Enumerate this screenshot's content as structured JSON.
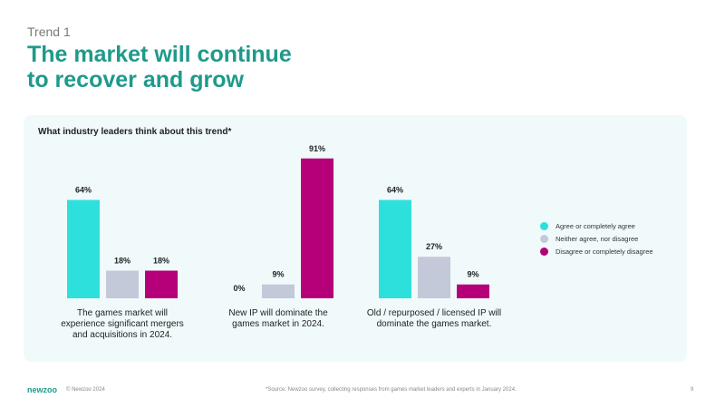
{
  "header": {
    "eyebrow": "Trend 1",
    "title_line1": "The market will continue",
    "title_line2": "to recover and grow"
  },
  "panel_title": "What industry leaders think about this trend*",
  "chart_data": {
    "type": "bar",
    "categories": [
      "The games market will experience significant mergers and acquisitions in 2024.",
      "New IP will dominate the games market in 2024.",
      "Old / repurposed / licensed IP will dominate the games market."
    ],
    "category_lines": [
      [
        "The games market will",
        "experience significant mergers",
        "and acquisitions in 2024."
      ],
      [
        "New IP will dominate the",
        "games market in 2024."
      ],
      [
        "Old / repurposed / licensed IP will",
        "dominate the games market."
      ]
    ],
    "series": [
      {
        "name": "Agree or completely agree",
        "values": [
          64,
          0,
          64
        ],
        "labels": [
          "64%",
          "0%",
          "64%"
        ],
        "color": "#2ee0dc"
      },
      {
        "name": "Neither agree, nor disagree",
        "values": [
          18,
          9,
          27
        ],
        "labels": [
          "18%",
          "9%",
          "27%"
        ],
        "color": "#c4c9d9"
      },
      {
        "name": "Disagree or completely disagree",
        "values": [
          18,
          91,
          9
        ],
        "labels": [
          "18%",
          "91%",
          "9%"
        ],
        "color": "#b5007a"
      }
    ],
    "ylim": [
      0,
      100
    ],
    "legend_position": "right"
  },
  "footer": {
    "logo": "newzoo",
    "copyright": "© Newzoo 2024",
    "source": "*Source: Newzoo survey, collecting responses from games market leaders and experts in January 2024.",
    "page": "9"
  }
}
